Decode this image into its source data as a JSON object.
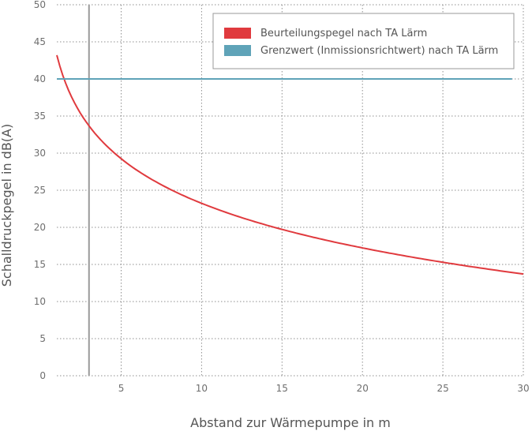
{
  "chart_data": {
    "type": "line",
    "xlabel": "Abstand zur Wärmepumpe in m",
    "ylabel": "Schalldruckpegel in dB(A)",
    "xlim": [
      1,
      30
    ],
    "ylim": [
      0,
      50
    ],
    "x_ticks": [
      5,
      10,
      15,
      20,
      25,
      30
    ],
    "y_ticks": [
      0,
      5,
      10,
      15,
      20,
      25,
      30,
      35,
      40,
      45,
      50
    ],
    "grid": true,
    "legend_position": "top-right",
    "vertical_marker_x": 3,
    "series": [
      {
        "name": "Beurteilungspegel nach TA Lärm",
        "color": "#e03a3e",
        "x": [
          1,
          1.5,
          2,
          2.5,
          3,
          4,
          5,
          6,
          7,
          8,
          10,
          12,
          15,
          20,
          25,
          30
        ],
        "y": [
          43.2,
          39.7,
          37.2,
          35.2,
          33.7,
          31.2,
          29.2,
          27.7,
          26.4,
          25.2,
          23.2,
          21.7,
          19.7,
          17.2,
          15.3,
          13.7
        ]
      },
      {
        "name": "Grenzwert (Inmissionsrichtwert) nach TA Lärm",
        "color": "#5fa3b8",
        "x": [
          1,
          29.3
        ],
        "y": [
          40,
          40
        ]
      }
    ]
  }
}
